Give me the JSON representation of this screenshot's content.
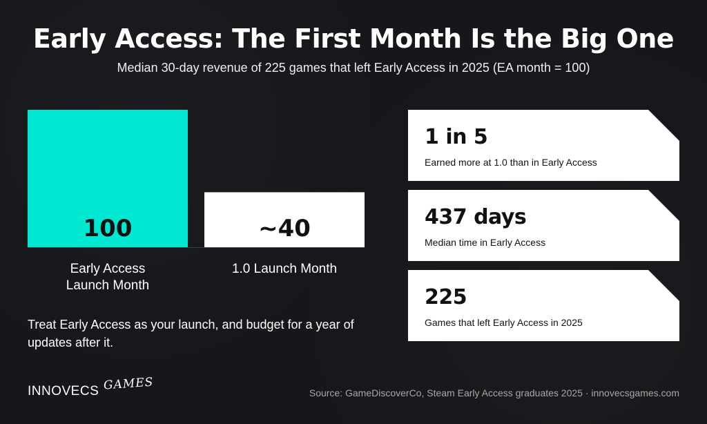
{
  "header": {
    "title": "Early Access: The First Month Is the Big One",
    "subtitle": "Median 30-day revenue of 225 games that left Early Access in 2025 (EA month = 100)"
  },
  "chart_data": {
    "type": "bar",
    "categories": [
      "Early Access\nLaunch Month",
      "1.0 Launch Month"
    ],
    "values": [
      100,
      40
    ],
    "value_labels": [
      "100",
      "~40"
    ],
    "title": "",
    "xlabel": "",
    "ylabel": "",
    "ylim": [
      0,
      100
    ],
    "grid": false,
    "legend": "none",
    "colors": [
      "#00e8d2",
      "#ffffff"
    ]
  },
  "takeaway": "Treat Early Access as your launch, and budget for a year of updates after it.",
  "stats": [
    {
      "value": "1 in 5",
      "caption": "Earned more at 1.0 than in Early Access"
    },
    {
      "value": "437 days",
      "caption": "Median time in Early Access"
    },
    {
      "value": "225",
      "caption": "Games that left Early Access in 2025"
    }
  ],
  "footer": {
    "logo_main": "INNOVECS",
    "logo_script": "GAMES",
    "source": "Source: GameDiscoverCo, Steam Early Access graduates 2025 · innovecsgames.com"
  }
}
